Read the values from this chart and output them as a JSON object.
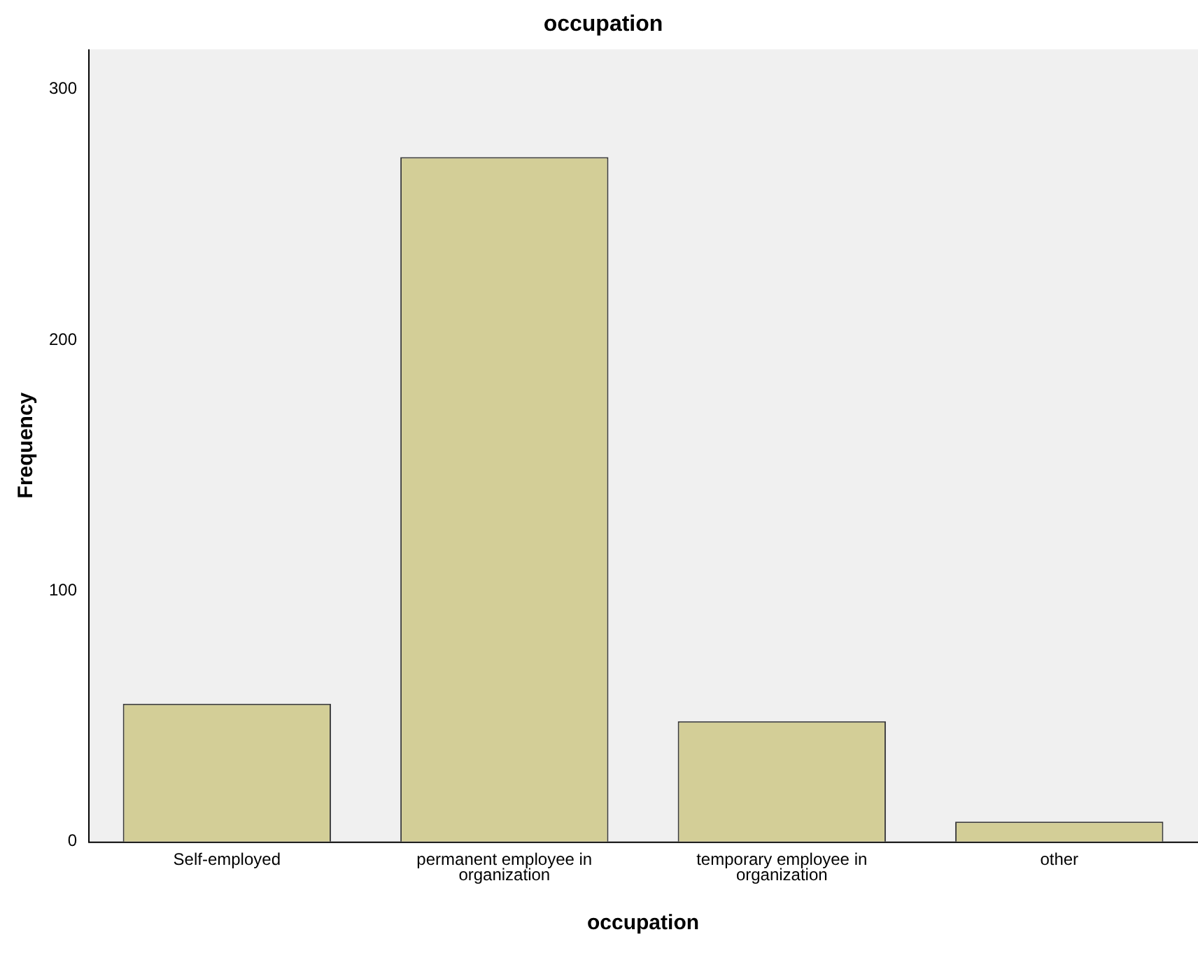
{
  "chart_data": {
    "type": "bar",
    "title": "occupation",
    "xlabel": "occupation",
    "ylabel": "Frequency",
    "categories": [
      "Self-employed",
      "permanent employee in organization",
      "temporary employee in organization",
      "other"
    ],
    "values": [
      55,
      273,
      48,
      8
    ],
    "color": "#d3ce97",
    "ylim": [
      0,
      316
    ],
    "yticks": [
      0,
      100,
      200,
      300
    ],
    "grid": false,
    "legend": false
  }
}
